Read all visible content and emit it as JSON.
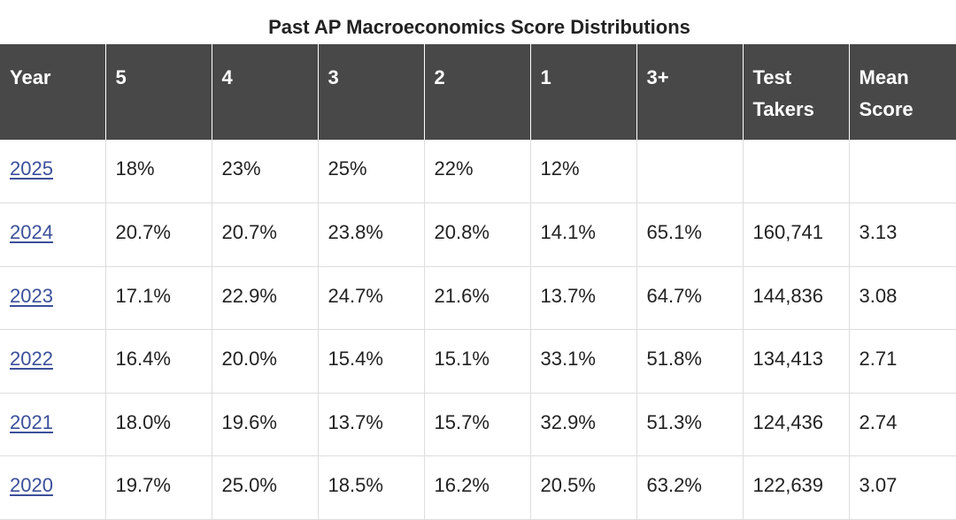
{
  "title": "Past AP Macroeconomics Score Distributions",
  "table": {
    "headers": [
      "Year",
      "5",
      "4",
      "3",
      "2",
      "1",
      "3+",
      "Test Takers",
      "Mean Score"
    ],
    "rows": [
      [
        "2025",
        "18%",
        "23%",
        "25%",
        "22%",
        "12%",
        "",
        "",
        ""
      ],
      [
        "2024",
        "20.7%",
        "20.7%",
        "23.8%",
        "20.8%",
        "14.1%",
        "65.1%",
        "160,741",
        "3.13"
      ],
      [
        "2023",
        "17.1%",
        "22.9%",
        "24.7%",
        "21.6%",
        "13.7%",
        "64.7%",
        "144,836",
        "3.08"
      ],
      [
        "2022",
        "16.4%",
        "20.0%",
        "15.4%",
        "15.1%",
        "33.1%",
        "51.8%",
        "134,413",
        "2.71"
      ],
      [
        "2021",
        "18.0%",
        "19.6%",
        "13.7%",
        "15.7%",
        "32.9%",
        "51.3%",
        "124,436",
        "2.74"
      ],
      [
        "2020",
        "19.7%",
        "25.0%",
        "18.5%",
        "16.2%",
        "20.5%",
        "63.2%",
        "122,639",
        "3.07"
      ]
    ]
  },
  "colors": {
    "header_bg": "#484848",
    "header_text": "#ffffff",
    "link": "#3b4f9a",
    "border": "#dddddd"
  }
}
